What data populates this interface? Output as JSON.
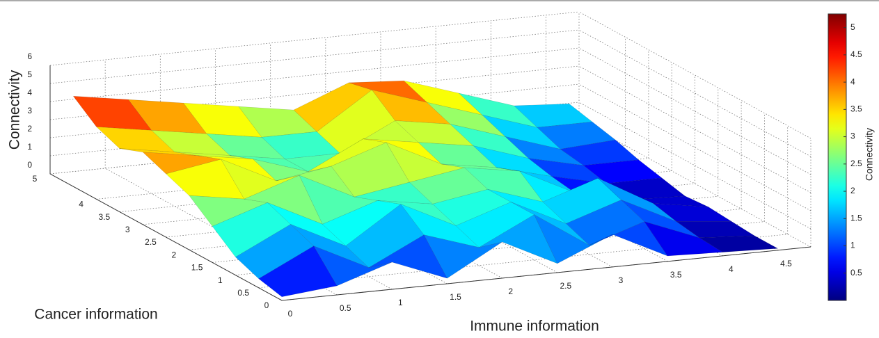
{
  "chart_data": {
    "type": "surface",
    "x_label": "Immune information",
    "y_label": "Cancer information",
    "z_label": "Connectivity",
    "colorbar_label": "Connectivity",
    "colormap": "jet",
    "grid": true,
    "x": [
      0,
      0.5,
      1,
      1.5,
      2,
      2.5,
      3,
      3.5,
      4,
      4.5
    ],
    "y": [
      0,
      0.5,
      1,
      1.5,
      2,
      2.5,
      3,
      3.5,
      4,
      4.5
    ],
    "z": [
      [
        0.2,
        0.5,
        1.5,
        0.3,
        2.0,
        0.5,
        1.8,
        0.3,
        0.2,
        0.1
      ],
      [
        0.5,
        2.0,
        0.5,
        2.0,
        1.0,
        2.5,
        0.5,
        1.5,
        0.3,
        0.1
      ],
      [
        1.0,
        2.5,
        1.0,
        3.0,
        1.5,
        2.5,
        1.0,
        2.0,
        0.5,
        0.2
      ],
      [
        2.0,
        3.0,
        1.5,
        2.5,
        2.0,
        2.5,
        1.5,
        2.5,
        0.8,
        0.3
      ],
      [
        3.0,
        2.5,
        3.5,
        2.0,
        2.5,
        3.0,
        2.5,
        1.0,
        0.3,
        0.2
      ],
      [
        3.5,
        4.0,
        2.5,
        3.0,
        4.0,
        2.5,
        2.0,
        1.2,
        0.5,
        0.5
      ],
      [
        4.0,
        3.5,
        3.0,
        2.0,
        3.5,
        3.0,
        2.5,
        1.5,
        0.8,
        0.8
      ],
      [
        3.5,
        3.0,
        2.5,
        2.0,
        2.0,
        3.5,
        3.0,
        2.0,
        1.0,
        1.2
      ],
      [
        4.0,
        3.5,
        3.0,
        2.5,
        2.5,
        4.5,
        3.5,
        2.5,
        1.5,
        1.5
      ],
      [
        5.0,
        4.5,
        4.0,
        3.5,
        3.0,
        4.2,
        4.0,
        3.0,
        2.0,
        1.8
      ]
    ],
    "xlim": [
      0,
      4.8
    ],
    "ylim": [
      0,
      5
    ],
    "zlim": [
      0,
      6
    ],
    "xticks": [
      0,
      0.5,
      1,
      1.5,
      2,
      2.5,
      3,
      3.5,
      4,
      4.5
    ],
    "yticks": [
      0,
      0.5,
      1,
      1.5,
      2,
      2.5,
      3,
      3.5,
      4,
      5
    ],
    "zticks": [
      0,
      1,
      2,
      3,
      4,
      5,
      6
    ],
    "clim": [
      0,
      5.25
    ],
    "cticks": [
      0.5,
      1,
      1.5,
      2,
      2.5,
      3,
      3.5,
      4,
      4.5,
      5
    ]
  }
}
